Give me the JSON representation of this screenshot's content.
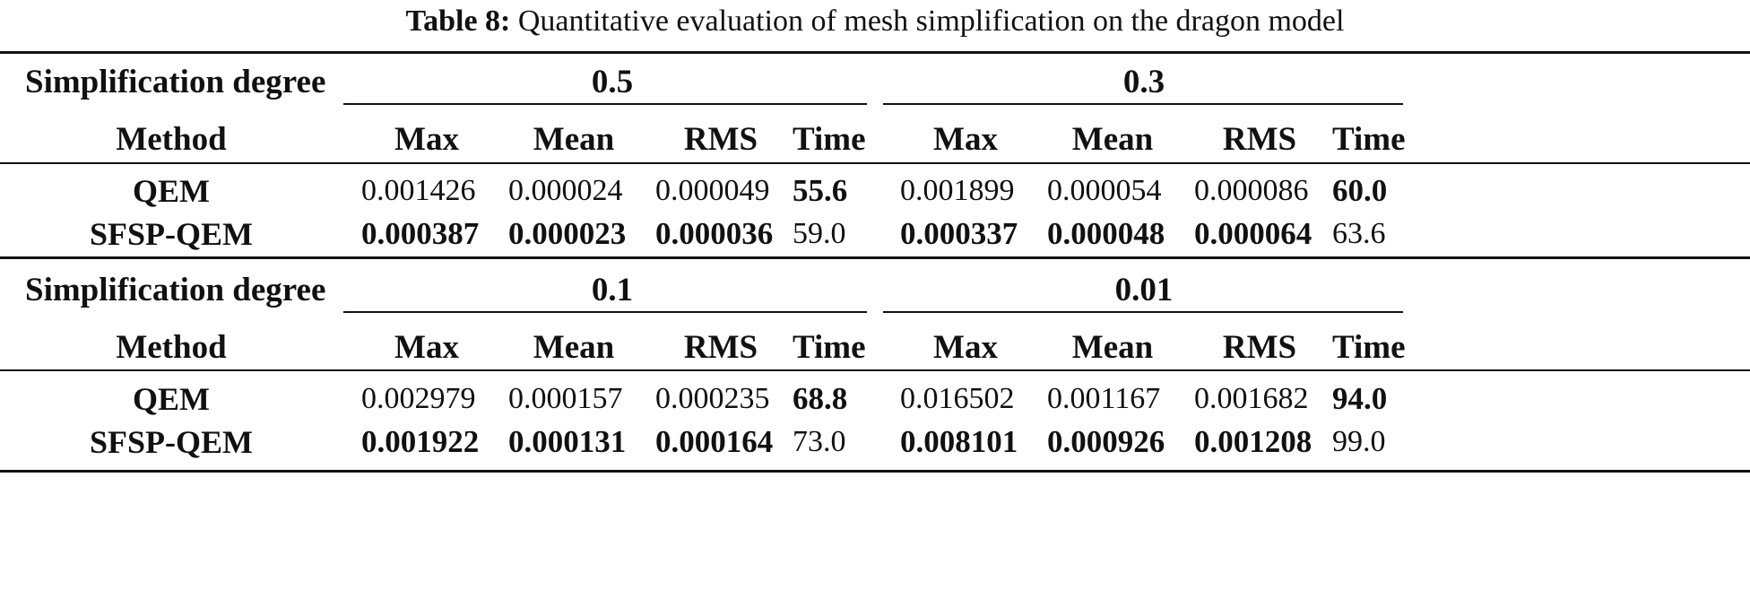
{
  "caption": {
    "label": "Table 8:",
    "text": "Quantitative evaluation of mesh simplification on the dragon model"
  },
  "row_label": "Simplification degree",
  "method_label": "Method",
  "metric_headers": [
    "Max",
    "Mean",
    "RMS",
    "Time"
  ],
  "blocks": [
    {
      "degrees": [
        "0.5",
        "0.3"
      ],
      "rows": [
        {
          "method": "QEM",
          "values": [
            "0.001426",
            "0.000024",
            "0.000049",
            "55.6",
            "0.001899",
            "0.000054",
            "0.000086",
            "60.0"
          ],
          "bold": [
            false,
            false,
            false,
            true,
            false,
            false,
            false,
            true
          ]
        },
        {
          "method": "SFSP-QEM",
          "values": [
            "0.000387",
            "0.000023",
            "0.000036",
            "59.0",
            "0.000337",
            "0.000048",
            "0.000064",
            "63.6"
          ],
          "bold": [
            true,
            true,
            true,
            false,
            true,
            true,
            true,
            false
          ]
        }
      ]
    },
    {
      "degrees": [
        "0.1",
        "0.01"
      ],
      "rows": [
        {
          "method": "QEM",
          "values": [
            "0.002979",
            "0.000157",
            "0.000235",
            "68.8",
            "0.016502",
            "0.001167",
            "0.001682",
            "94.0"
          ],
          "bold": [
            false,
            false,
            false,
            true,
            false,
            false,
            false,
            true
          ]
        },
        {
          "method": "SFSP-QEM",
          "values": [
            "0.001922",
            "0.000131",
            "0.000164",
            "73.0",
            "0.008101",
            "0.000926",
            "0.001208",
            "99.0"
          ],
          "bold": [
            true,
            true,
            true,
            false,
            true,
            true,
            true,
            false
          ]
        }
      ]
    }
  ]
}
